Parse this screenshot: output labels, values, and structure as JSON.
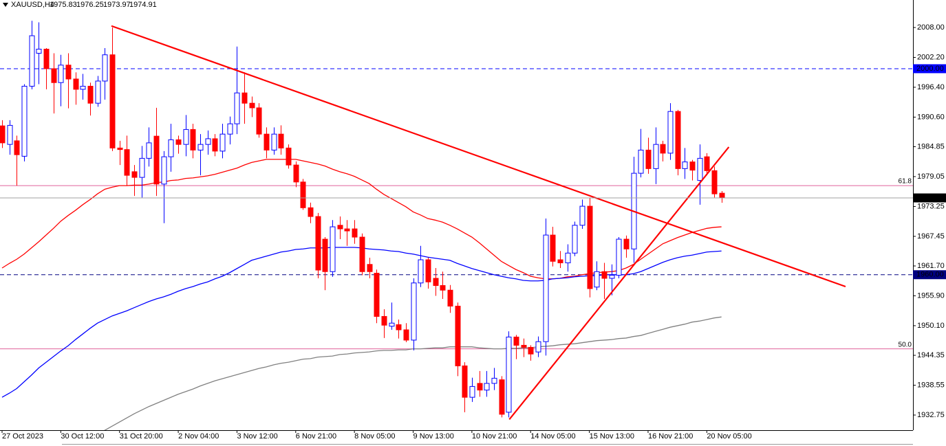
{
  "chart_data": {
    "type": "candlestick",
    "symbol": "XAUUSD,H4",
    "categories": [
      "27 Oct 2023",
      null,
      null,
      null,
      null,
      null,
      null,
      null,
      "30 Oct 12:00",
      null,
      null,
      null,
      null,
      null,
      null,
      null,
      "31 Oct 20:00",
      null,
      null,
      null,
      null,
      null,
      null,
      null,
      "2 Nov 04:00",
      null,
      null,
      null,
      null,
      null,
      null,
      null,
      "3 Nov 12:00",
      null,
      null,
      null,
      null,
      null,
      null,
      null,
      "6 Nov 21:00",
      null,
      null,
      null,
      null,
      null,
      null,
      null,
      "8 Nov 05:00",
      null,
      null,
      null,
      null,
      null,
      null,
      null,
      "9 Nov 13:00",
      null,
      null,
      null,
      null,
      null,
      null,
      null,
      "10 Nov 21:00",
      null,
      null,
      null,
      null,
      null,
      null,
      null,
      "14 Nov 05:00",
      null,
      null,
      null,
      null,
      null,
      null,
      null,
      "15 Nov 13:00",
      null,
      null,
      null,
      null,
      null,
      null,
      null,
      "16 Nov 21:00",
      null,
      null,
      null,
      null,
      null,
      null,
      null,
      "20 Nov 05:00",
      null,
      null
    ],
    "open": [
      1988.9,
      1985.3,
      1986,
      1983,
      1996.6,
      2003,
      2003.8,
      2000,
      1997.3,
      2000.7,
      1998,
      1996,
      1996.6,
      1993.3,
      1997.6,
      2002.7,
      1984.6,
      1984.3,
      1980,
      1978.9,
      1982.6,
      1986.9,
      1977.6,
      1982.9,
      1986.2,
      1985.3,
      1988.2,
      1984.2,
      1985.3,
      1986.4,
      1984,
      1987.3,
      1989.3,
      1995.3,
      1993.3,
      1992.4,
      1987.3,
      1984.2,
      1987.3,
      1984.6,
      1981.3,
      1978,
      1973,
      1971.3,
      1966.9,
      1960.6,
      1969.6,
      1968.9,
      1968.9,
      1967.3,
      1962,
      1960.3,
      1951.9,
      1950,
      1950.3,
      1949.3,
      1947.3,
      1958.4,
      1962.9,
      1959.3,
      1957.9,
      1957,
      1953.9,
      1942.3,
      1936.2,
      1938.9,
      1937.6,
      1938.9,
      1939.6,
      1933.3,
      1947.9,
      1946.3,
      1945.9,
      1945,
      1947,
      1967.7,
      1962.9,
      1962.3,
      1964.2,
      1969.6,
      1973.3,
      1957.6,
      1960.6,
      1959.3,
      1959.9,
      1966.9,
      1965,
      1979.7,
      1984.2,
      1980.6,
      1985.3,
      1983.6,
      1991.7,
      1980.6,
      1981.9,
      1978.3,
      1982.9,
      1980.2,
      1975.83
    ],
    "high": [
      1990,
      1990,
      1987,
      1997,
      2009.3,
      2009,
      2004,
      2003,
      2002.7,
      2003,
      1999.3,
      1999,
      1997.3,
      1998.6,
      2004,
      2008,
      1986,
      1987,
      1981.3,
      1985,
      1988.6,
      1992.4,
      1984,
      1989.3,
      1987,
      1991,
      1989.3,
      1987.3,
      1988,
      1987.3,
      1989.3,
      1990.7,
      2004.3,
      1999.3,
      1994.6,
      1993.3,
      1988.6,
      1988.6,
      1989,
      1985.3,
      1982,
      1978.6,
      1974,
      1972,
      1967.3,
      1970.6,
      1971.3,
      1970.6,
      1970.6,
      1968,
      1963.3,
      1961,
      1953.3,
      1954.6,
      1951.3,
      1950.6,
      1959.3,
      1965.6,
      1963.3,
      1961.3,
      1960.6,
      1958,
      1954.6,
      1943,
      1940,
      1941.3,
      1941.3,
      1941.9,
      1940.3,
      1949,
      1948.3,
      1947.6,
      1946.3,
      1948,
      1970.9,
      1969.3,
      1964.6,
      1965.9,
      1970.3,
      1974.6,
      1975,
      1962.6,
      1962.3,
      1962,
      1967.3,
      1967.6,
      1982.9,
      1988.3,
      1986.6,
      1988.6,
      1986,
      1993.3,
      1992,
      1984.6,
      1982.3,
      1985.3,
      1983.6,
      1981,
      1976.25
    ],
    "low": [
      1984.6,
      1983.3,
      1977.3,
      1982,
      1996,
      1997,
      1996,
      1991.3,
      1992.7,
      1992.3,
      1993,
      1994,
      1990.9,
      1992.6,
      1994,
      1984,
      1981.3,
      1977.3,
      1975.3,
      1975,
      1981,
      1975.3,
      1970,
      1980,
      1983.5,
      1983,
      1982.6,
      1979.3,
      1983.3,
      1983,
      1982.6,
      1985.3,
      1987.3,
      1989.3,
      1990.6,
      1986.6,
      1982.6,
      1983.3,
      1983.3,
      1980.6,
      1977,
      1972.6,
      1970,
      1959.3,
      1957,
      1959.6,
      1966.9,
      1965.6,
      1966,
      1959.9,
      1959.3,
      1950.6,
      1947.7,
      1949.3,
      1947.6,
      1946.9,
      1945.3,
      1957.6,
      1957.3,
      1955.9,
      1955.3,
      1952.6,
      1940.3,
      1933.3,
      1935.3,
      1936.3,
      1936.3,
      1937.6,
      1932.3,
      1932.3,
      1943.6,
      1944,
      1943.3,
      1944,
      1944.3,
      1961.6,
      1961.3,
      1960.6,
      1963.6,
      1968.9,
      1955.6,
      1957,
      1955.3,
      1956,
      1959.3,
      1963.3,
      1962.3,
      1978.9,
      1979.6,
      1977.6,
      1982,
      1982.3,
      1979.3,
      1978.6,
      1978.3,
      1973.6,
      1979.3,
      1975,
      1973.97
    ],
    "close": [
      1985.6,
      1989,
      1983.3,
      1996.6,
      2006.4,
      2003.8,
      2000,
      1997.3,
      2000.7,
      1998,
      1996,
      1996.6,
      1993.3,
      1997.6,
      2002.7,
      1984.6,
      1984.3,
      1979.3,
      1978.9,
      1982.6,
      1985.6,
      1977.6,
      1982.9,
      1986.2,
      1985.3,
      1988.2,
      1984.2,
      1985.3,
      1986.4,
      1984,
      1987.3,
      1989.3,
      1995.3,
      1993.3,
      1992.4,
      1987.3,
      1984.2,
      1987.3,
      1984.6,
      1981.3,
      1978,
      1973,
      1971.3,
      1960.9,
      1960.6,
      1969.3,
      1968.9,
      1968.5,
      1967.3,
      1960.6,
      1960.6,
      1951.9,
      1950.2,
      1950.6,
      1949.3,
      1947.3,
      1958.4,
      1962.9,
      1958.6,
      1957.9,
      1957,
      1953.9,
      1942.3,
      1936.2,
      1938.3,
      1937.6,
      1938.9,
      1939.9,
      1932.9,
      1947.9,
      1946.3,
      1945.9,
      1944.6,
      1947,
      1967.7,
      1962.6,
      1962.3,
      1964.2,
      1969.6,
      1973.3,
      1957.3,
      1960.6,
      1959.3,
      1959.9,
      1966.9,
      1965,
      1979.7,
      1984.2,
      1980.6,
      1985.3,
      1983.6,
      1991.7,
      1980.6,
      1981.9,
      1980.3,
      1982.6,
      1980.2,
      1975.7,
      1974.91
    ],
    "bull_color": "#0000ff",
    "bear_color": "#ff0000",
    "series": [
      {
        "color": "#ff0000",
        "values": [
          1961.3,
          1962.2,
          1963.0,
          1964.0,
          1965.2,
          1966.4,
          1967.7,
          1969.0,
          1970.4,
          1971.5,
          1972.5,
          1973.6,
          1974.6,
          1975.7,
          1976.6,
          1977.0,
          1977.3,
          1977.3,
          1977.4,
          1977.4,
          1977.6,
          1977.9,
          1978.0,
          1978.3,
          1978.4,
          1978.7,
          1978.8,
          1979.0,
          1979.2,
          1979.5,
          1979.9,
          1980.3,
          1980.7,
          1981.3,
          1981.8,
          1982.1,
          1982.4,
          1982.4,
          1982.4,
          1982.4,
          1982.4,
          1982.1,
          1981.8,
          1981.5,
          1981.1,
          1980.5,
          1980.0,
          1979.6,
          1979.1,
          1978.4,
          1977.7,
          1976.6,
          1975.6,
          1974.8,
          1974.0,
          1973.2,
          1972.2,
          1971.6,
          1970.9,
          1970.6,
          1970.2,
          1969.6,
          1968.9,
          1968.1,
          1967.3,
          1966.2,
          1965.0,
          1963.8,
          1962.6,
          1961.8,
          1961.0,
          1960.4,
          1959.7,
          1959.4,
          1959.2,
          1959.2,
          1959.3,
          1959.6,
          1959.7,
          1960.0,
          1960.2,
          1960.4,
          1960.5,
          1960.6,
          1960.8,
          1961.3,
          1962.0,
          1963.0,
          1964.0,
          1965.0,
          1966.0,
          1966.6,
          1967.2,
          1967.7,
          1968.2,
          1968.6,
          1969.0,
          1969.2,
          1969.3
        ]
      },
      {
        "color": "#0000ff",
        "values": [
          1936.2,
          1937.0,
          1937.9,
          1939.2,
          1940.5,
          1941.9,
          1943.0,
          1944.1,
          1945.2,
          1946.2,
          1947.4,
          1948.5,
          1949.6,
          1950.6,
          1951.3,
          1952.0,
          1952.5,
          1953.0,
          1953.6,
          1954.2,
          1954.8,
          1955.3,
          1955.7,
          1956.2,
          1956.8,
          1957.3,
          1957.7,
          1958.2,
          1958.6,
          1959.2,
          1959.7,
          1960.4,
          1961.2,
          1962.0,
          1962.8,
          1963.2,
          1963.6,
          1964.0,
          1964.4,
          1964.6,
          1964.9,
          1965.0,
          1965.2,
          1965.2,
          1965.2,
          1965.3,
          1965.3,
          1965.3,
          1965.3,
          1965.2,
          1965.0,
          1964.9,
          1964.8,
          1964.6,
          1964.5,
          1964.2,
          1964.0,
          1963.7,
          1963.4,
          1963.2,
          1963.0,
          1962.8,
          1962.2,
          1961.7,
          1961.2,
          1960.8,
          1960.4,
          1960.0,
          1959.7,
          1959.4,
          1959.2,
          1958.9,
          1958.8,
          1958.8,
          1958.9,
          1959.2,
          1959.3,
          1959.4,
          1959.6,
          1959.7,
          1959.8,
          1959.8,
          1960.0,
          1960.0,
          1960.0,
          1960.0,
          1960.2,
          1960.6,
          1961.2,
          1961.8,
          1962.4,
          1962.9,
          1963.3,
          1963.6,
          1963.8,
          1964.1,
          1964.4,
          1964.5,
          1964.6
        ]
      },
      {
        "color": "#808080",
        "values": [
          null,
          null,
          null,
          null,
          null,
          null,
          null,
          null,
          null,
          null,
          null,
          null,
          null,
          1929.0,
          1929.8,
          1930.6,
          1931.4,
          1932.2,
          1933.0,
          1933.7,
          1934.4,
          1935.0,
          1935.6,
          1936.2,
          1936.8,
          1937.3,
          1937.8,
          1938.4,
          1938.9,
          1939.4,
          1939.8,
          1940.2,
          1940.6,
          1941.0,
          1941.4,
          1941.8,
          1942.1,
          1942.5,
          1942.8,
          1943.0,
          1943.3,
          1943.6,
          1943.7,
          1944.0,
          1944.1,
          1944.2,
          1944.5,
          1944.6,
          1944.8,
          1944.9,
          1945.0,
          1945.2,
          1945.3,
          1945.3,
          1945.4,
          1945.4,
          1945.6,
          1945.6,
          1945.7,
          1945.8,
          1945.8,
          1946.0,
          1946.0,
          1946.0,
          1946.0,
          1945.8,
          1945.7,
          1945.6,
          1945.6,
          1945.7,
          1945.7,
          1945.8,
          1945.8,
          1946.0,
          1946.1,
          1946.2,
          1946.4,
          1946.5,
          1946.6,
          1946.8,
          1947.0,
          1947.2,
          1947.3,
          1947.4,
          1947.6,
          1947.7,
          1948.0,
          1948.2,
          1948.6,
          1949.0,
          1949.4,
          1949.8,
          1950.1,
          1950.4,
          1950.8,
          1951.0,
          1951.3,
          1951.6,
          1951.8
        ]
      }
    ],
    "trendlines": [
      {
        "color": "#ff0000",
        "x": [
          14.9,
          114.9
        ],
        "y": [
          2008.3,
          1957.7
        ]
      },
      {
        "color": "#ff0000",
        "x": [
          69.1,
          99.0
        ],
        "y": [
          1931.9,
          1984.8
        ]
      }
    ],
    "hlines": [
      {
        "value": 2000,
        "label": "2000.00",
        "color": "#0000ff"
      },
      {
        "value": 1960,
        "label": "1960.00",
        "color": "#000080"
      }
    ],
    "fib_levels": [
      {
        "value": 1977.3,
        "label": "61.8",
        "color": "#e0609a"
      },
      {
        "value": 1945.6,
        "label": "50.0",
        "color": "#e0609a"
      }
    ],
    "price_line_color": "#a0a0a0",
    "ylim": [
      1929.81,
      2013.34
    ],
    "yticks": [
      {
        "value": 2008,
        "label": "2008.00"
      },
      {
        "value": 2002.2,
        "label": "2002.20"
      },
      {
        "value": 1996.4,
        "label": "1996.40"
      },
      {
        "value": 1990.6,
        "label": "1990.60"
      },
      {
        "value": 1984.85,
        "label": "1984.85"
      },
      {
        "value": 1979.05,
        "label": "1979.05"
      },
      {
        "value": 1973.25,
        "label": "1973.25"
      },
      {
        "value": 1967.45,
        "label": "1967.45"
      },
      {
        "value": 1961.7,
        "label": "1961.70"
      },
      {
        "value": 1955.9,
        "label": "1955.90"
      },
      {
        "value": 1950.1,
        "label": "1950.10"
      },
      {
        "value": 1944.35,
        "label": "1944.35"
      },
      {
        "value": 1938.55,
        "label": "1938.55"
      },
      {
        "value": 1932.75,
        "label": "1932.75"
      }
    ]
  }
}
